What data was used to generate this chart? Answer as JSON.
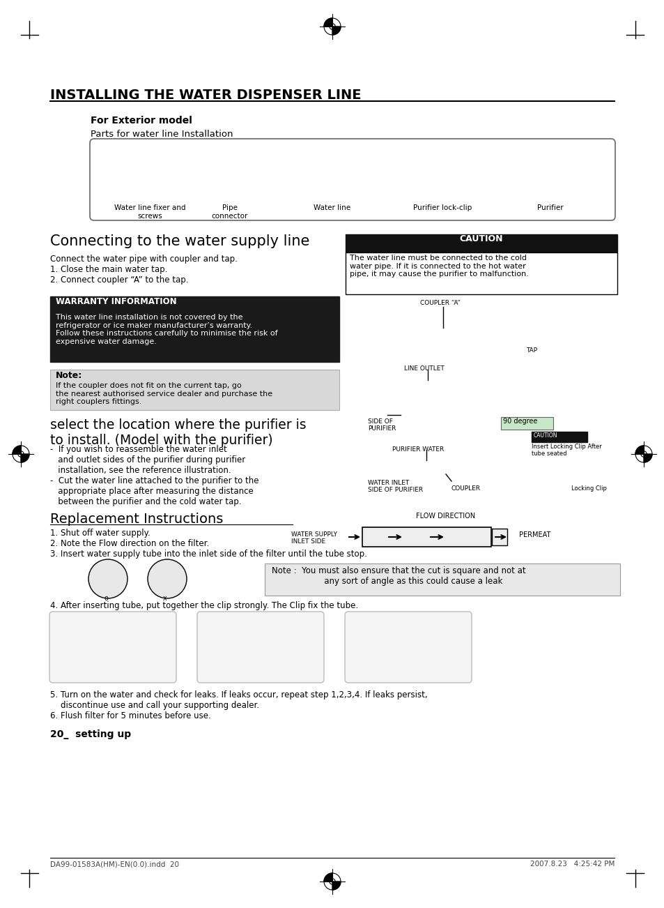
{
  "page_bg": "#ffffff",
  "title": "INSTALLING THE WATER DISPENSER LINE",
  "footer_left": "DA99-01583A(HM)-EN(0.0).indd  20",
  "footer_right": "2007.8.23   4:25:42 PM",
  "page_num": "20_  setting up"
}
